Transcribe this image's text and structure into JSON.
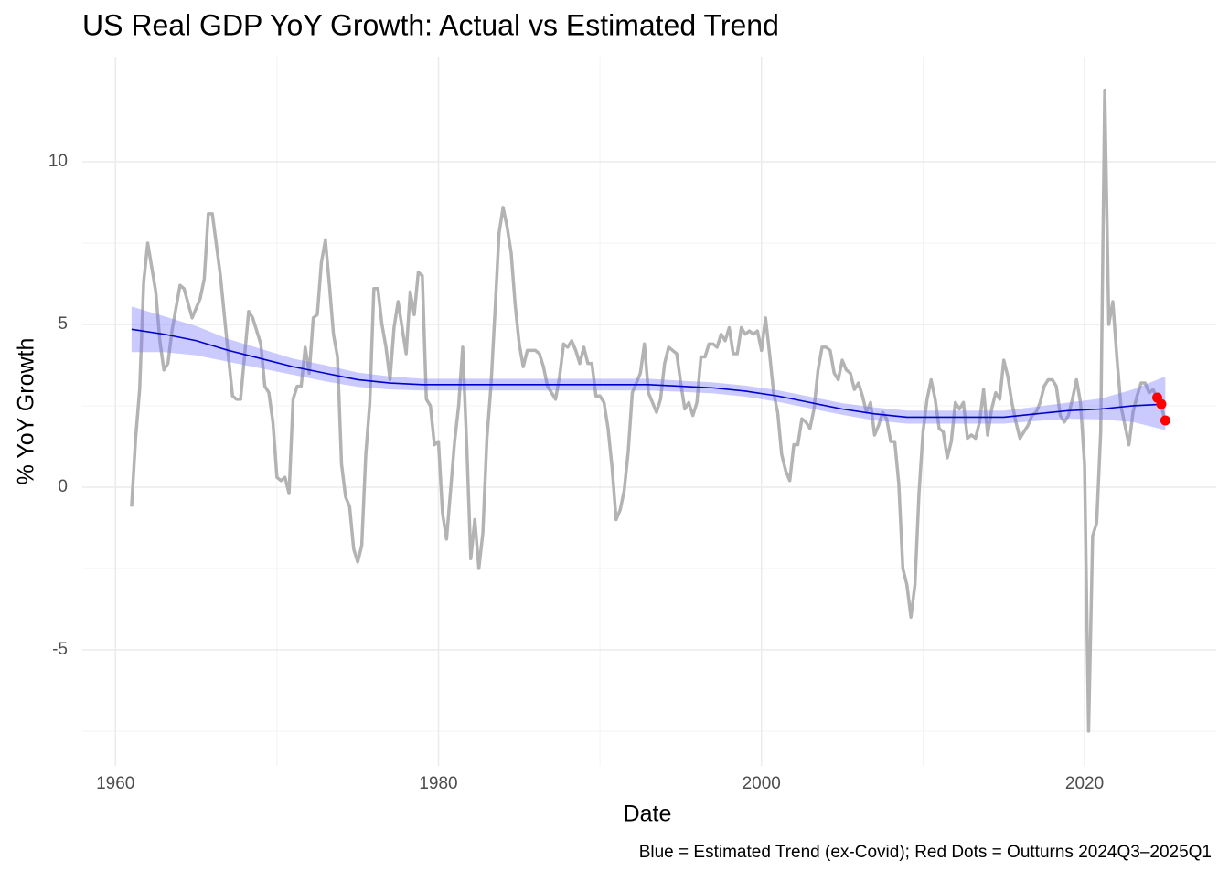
{
  "chart_data": {
    "type": "line",
    "title": "US Real GDP YoY Growth: Actual vs Estimated Trend",
    "x_label": "Date",
    "y_label": "% YoY Growth",
    "caption": "Blue = Estimated Trend (ex-Covid); Red Dots = Outturns 2024Q3–2025Q1",
    "xlim": [
      1957.95,
      2028.15
    ],
    "ylim": [
      -8.57,
      13.23
    ],
    "xticks": [
      1960,
      1980,
      2000,
      2020
    ],
    "yticks": [
      -5,
      0,
      5,
      10
    ],
    "x_minor_grid": [
      1970,
      1990,
      2010
    ],
    "y_minor_grid": [
      -7.5,
      -2.5,
      2.5,
      7.5
    ],
    "grid": true,
    "series": [
      {
        "style": "line",
        "color": "#b3b3b3",
        "x": [
          1961.0,
          1961.25,
          1961.5,
          1961.75,
          1962.0,
          1962.5,
          1962.75,
          1963.0,
          1963.25,
          1963.5,
          1964.0,
          1964.25,
          1964.75,
          1965.25,
          1965.5,
          1965.75,
          1966.0,
          1966.5,
          1967.0,
          1967.25,
          1967.5,
          1967.75,
          1968.25,
          1968.5,
          1969.0,
          1969.25,
          1969.5,
          1969.75,
          1970.0,
          1970.25,
          1970.5,
          1970.75,
          1971.0,
          1971.25,
          1971.5,
          1971.75,
          1972.0,
          1972.25,
          1972.5,
          1972.75,
          1973.0,
          1973.25,
          1973.5,
          1973.75,
          1974.0,
          1974.25,
          1974.5,
          1974.75,
          1975.0,
          1975.25,
          1975.5,
          1975.75,
          1976.0,
          1976.25,
          1976.5,
          1976.75,
          1977.0,
          1977.25,
          1977.5,
          1977.75,
          1978.0,
          1978.25,
          1978.5,
          1978.75,
          1979.0,
          1979.25,
          1979.5,
          1979.75,
          1980.0,
          1980.25,
          1980.5,
          1980.75,
          1981.0,
          1981.25,
          1981.5,
          1981.75,
          1982.0,
          1982.25,
          1982.5,
          1982.75,
          1983.0,
          1983.25,
          1983.5,
          1983.75,
          1984.0,
          1984.25,
          1984.5,
          1984.75,
          1985.0,
          1985.25,
          1985.5,
          1985.75,
          1986.0,
          1986.25,
          1986.5,
          1986.75,
          1987.0,
          1987.25,
          1987.5,
          1987.75,
          1988.0,
          1988.25,
          1988.5,
          1988.75,
          1989.0,
          1989.25,
          1989.5,
          1989.75,
          1990.0,
          1990.25,
          1990.5,
          1990.75,
          1991.0,
          1991.25,
          1991.5,
          1991.75,
          1992.0,
          1992.25,
          1992.5,
          1992.75,
          1993.0,
          1993.25,
          1993.5,
          1993.75,
          1994.0,
          1994.25,
          1994.5,
          1994.75,
          1995.0,
          1995.25,
          1995.5,
          1995.75,
          1996.0,
          1996.25,
          1996.5,
          1996.75,
          1997.0,
          1997.25,
          1997.5,
          1997.75,
          1998.0,
          1998.25,
          1998.5,
          1998.75,
          1999.0,
          1999.25,
          1999.5,
          1999.75,
          2000.0,
          2000.25,
          2000.5,
          2000.75,
          2001.0,
          2001.25,
          2001.5,
          2001.75,
          2002.0,
          2002.25,
          2002.5,
          2002.75,
          2003.0,
          2003.25,
          2003.5,
          2003.75,
          2004.0,
          2004.25,
          2004.5,
          2004.75,
          2005.0,
          2005.25,
          2005.5,
          2005.75,
          2006.0,
          2006.25,
          2006.5,
          2006.75,
          2007.0,
          2007.25,
          2007.5,
          2007.75,
          2008.0,
          2008.25,
          2008.5,
          2008.75,
          2009.0,
          2009.25,
          2009.5,
          2009.75,
          2010.0,
          2010.25,
          2010.5,
          2010.75,
          2011.0,
          2011.25,
          2011.5,
          2011.75,
          2012.0,
          2012.25,
          2012.5,
          2012.75,
          2013.0,
          2013.25,
          2013.5,
          2013.75,
          2014.0,
          2014.25,
          2014.5,
          2014.75,
          2015.0,
          2015.25,
          2015.5,
          2015.75,
          2016.0,
          2016.25,
          2016.5,
          2016.75,
          2017.0,
          2017.25,
          2017.5,
          2017.75,
          2018.0,
          2018.25,
          2018.5,
          2018.75,
          2019.0,
          2019.25,
          2019.5,
          2019.75,
          2020.0,
          2020.25,
          2020.5,
          2020.75,
          2021.0,
          2021.25,
          2021.5,
          2021.75,
          2022.0,
          2022.25,
          2022.5,
          2022.75,
          2023.0,
          2023.25,
          2023.5,
          2023.75,
          2024.0,
          2024.25,
          2024.5,
          2024.75,
          2025.0
        ],
        "values": [
          -0.6,
          1.5,
          3.0,
          6.3,
          7.5,
          6.0,
          4.5,
          3.6,
          3.8,
          4.8,
          6.2,
          6.1,
          5.2,
          5.8,
          6.4,
          8.4,
          8.4,
          6.5,
          4.0,
          2.8,
          2.7,
          2.7,
          5.4,
          5.2,
          4.4,
          3.1,
          2.9,
          2.0,
          0.3,
          0.2,
          0.3,
          -0.2,
          2.7,
          3.1,
          3.1,
          4.3,
          3.5,
          5.2,
          5.3,
          6.9,
          7.6,
          6.2,
          4.7,
          4.0,
          0.7,
          -0.3,
          -0.6,
          -1.9,
          -2.3,
          -1.8,
          1.0,
          2.6,
          6.1,
          6.1,
          5.0,
          4.3,
          3.3,
          4.9,
          5.7,
          4.9,
          4.1,
          6.0,
          5.3,
          6.6,
          6.5,
          2.7,
          2.5,
          1.3,
          1.4,
          -0.8,
          -1.6,
          -0.1,
          1.4,
          2.5,
          4.3,
          1.3,
          -2.2,
          -1.0,
          -2.5,
          -1.4,
          1.5,
          3.1,
          5.4,
          7.8,
          8.6,
          8.0,
          7.2,
          5.6,
          4.4,
          3.7,
          4.2,
          4.2,
          4.2,
          4.1,
          3.7,
          3.1,
          2.9,
          2.7,
          3.4,
          4.4,
          4.3,
          4.5,
          4.2,
          3.8,
          4.3,
          3.8,
          3.8,
          2.8,
          2.8,
          2.6,
          1.8,
          0.6,
          -1.0,
          -0.7,
          -0.1,
          1.1,
          2.9,
          3.2,
          3.5,
          4.4,
          2.9,
          2.6,
          2.3,
          2.7,
          3.8,
          4.3,
          4.2,
          4.1,
          3.2,
          2.4,
          2.6,
          2.2,
          2.6,
          4.0,
          4.0,
          4.4,
          4.4,
          4.3,
          4.7,
          4.5,
          4.9,
          4.1,
          4.1,
          4.9,
          4.7,
          4.8,
          4.7,
          4.8,
          4.2,
          5.2,
          4.1,
          2.9,
          2.3,
          1.0,
          0.5,
          0.2,
          1.3,
          1.3,
          2.1,
          2.0,
          1.8,
          2.4,
          3.6,
          4.3,
          4.3,
          4.2,
          3.5,
          3.3,
          3.9,
          3.6,
          3.5,
          3.0,
          3.2,
          2.8,
          2.3,
          2.6,
          1.6,
          1.9,
          2.3,
          2.1,
          1.4,
          1.4,
          0.1,
          -2.5,
          -3.0,
          -4.0,
          -3.0,
          -0.2,
          1.7,
          2.7,
          3.3,
          2.7,
          1.8,
          1.7,
          0.9,
          1.4,
          2.6,
          2.4,
          2.6,
          1.5,
          1.6,
          1.5,
          2.0,
          3.0,
          1.6,
          2.4,
          2.9,
          2.7,
          3.9,
          3.4,
          2.6,
          2.0,
          1.5,
          1.7,
          1.9,
          2.2,
          2.3,
          2.6,
          3.1,
          3.3,
          3.3,
          3.1,
          2.2,
          2.0,
          2.2,
          2.7,
          3.3,
          2.6,
          0.7,
          -7.5,
          -1.5,
          -1.1,
          1.7,
          12.2,
          5.0,
          5.7,
          4.0,
          2.5,
          1.9,
          1.3,
          2.3,
          2.8,
          3.2,
          3.2,
          2.9,
          3.0,
          2.7,
          2.5,
          2.0
        ]
      },
      {
        "style": "trend",
        "color": "#0000cd",
        "band_color": "#7b7bff",
        "x": [
          1961,
          1963,
          1965,
          1967,
          1969,
          1971,
          1973,
          1975,
          1977,
          1979,
          1981,
          1983,
          1985,
          1987,
          1989,
          1991,
          1993,
          1995,
          1997,
          1999,
          2001,
          2003,
          2005,
          2007,
          2009,
          2011,
          2013,
          2015,
          2017,
          2019,
          2021,
          2023,
          2025
        ],
        "values": [
          4.85,
          4.7,
          4.5,
          4.2,
          3.95,
          3.7,
          3.5,
          3.3,
          3.2,
          3.15,
          3.15,
          3.15,
          3.15,
          3.15,
          3.15,
          3.15,
          3.15,
          3.1,
          3.05,
          2.95,
          2.8,
          2.6,
          2.4,
          2.25,
          2.15,
          2.15,
          2.15,
          2.15,
          2.25,
          2.35,
          2.4,
          2.5,
          2.55
        ],
        "lower": [
          4.15,
          4.15,
          4.05,
          3.85,
          3.65,
          3.45,
          3.25,
          3.08,
          3.0,
          2.97,
          2.97,
          2.97,
          2.97,
          2.97,
          2.97,
          2.97,
          2.97,
          2.93,
          2.88,
          2.78,
          2.62,
          2.42,
          2.22,
          2.05,
          1.95,
          1.95,
          1.95,
          1.95,
          2.03,
          2.1,
          2.08,
          2.0,
          1.75
        ],
        "upper": [
          5.55,
          5.25,
          4.95,
          4.55,
          4.25,
          3.95,
          3.75,
          3.52,
          3.4,
          3.33,
          3.33,
          3.33,
          3.33,
          3.33,
          3.33,
          3.33,
          3.33,
          3.27,
          3.22,
          3.12,
          2.98,
          2.78,
          2.58,
          2.45,
          2.35,
          2.35,
          2.35,
          2.35,
          2.47,
          2.6,
          2.72,
          3.0,
          3.4
        ]
      },
      {
        "style": "points",
        "color": "#ff0000",
        "x": [
          2024.5,
          2024.75,
          2025.0
        ],
        "values": [
          2.75,
          2.55,
          2.05
        ]
      }
    ]
  }
}
